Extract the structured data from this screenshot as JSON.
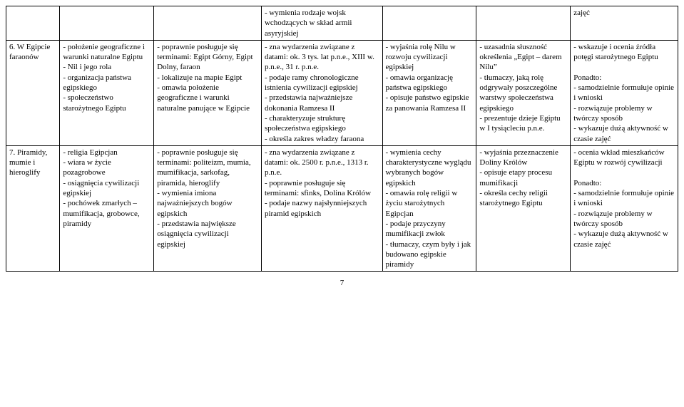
{
  "table": {
    "columns": [
      "col0",
      "col1",
      "col2",
      "col3",
      "col4",
      "col5",
      "col6"
    ],
    "rows": [
      {
        "c0": "",
        "c1": "",
        "c2": "",
        "c3": "- wymienia rodzaje wojsk wchodzących w skład armii asyryjskiej",
        "c4": "",
        "c5": "",
        "c6": "zajęć"
      },
      {
        "c0": "6. W Egipcie faraonów",
        "c1": "- położenie geograficzne i warunki naturalne Egiptu\n- Nil i jego rola\n- organizacja państwa egipskiego\n- społeczeństwo starożytnego Egiptu",
        "c2": "- poprawnie posługuje się terminami: Egipt Górny, Egipt Dolny, faraon\n- lokalizuje na mapie Egipt\n- omawia położenie geograficzne i warunki naturalne panujące w Egipcie",
        "c3": "- zna wydarzenia związane z datami: ok. 3 tys. lat p.n.e., XIII w. p.n.e., 31 r. p.n.e.\n- podaje ramy chronologiczne istnienia cywilizacji egipskiej\n- przedstawia najważniejsze dokonania Ramzesa II\n- charakteryzuje strukturę społeczeństwa egipskiego\n- określa zakres władzy faraona",
        "c4": "- wyjaśnia rolę Nilu w rozwoju cywilizacji egipskiej\n- omawia organizację państwa egipskiego\n- opisuje państwo egipskie za panowania Ramzesa II",
        "c5": "- uzasadnia słuszność określenia „Egipt – darem Nilu”\n- tłumaczy, jaką rolę odgrywały poszczególne warstwy społeczeństwa egipskiego\n- prezentuje dzieje Egiptu w I tysiącleciu p.n.e.",
        "c6": "- wskazuje i ocenia źródła potęgi starożytnego Egiptu\n\nPonadto:\n- samodzielnie formułuje opinie i wnioski\n- rozwiązuje problemy w twórczy sposób\n- wykazuje dużą aktywność w czasie zajęć"
      },
      {
        "c0": "7. Piramidy, mumie i hieroglify",
        "c1": "- religia Egipcjan\n- wiara w życie pozagrobowe\n- osiągnięcia cywilizacji egipskiej\n- pochówek zmarłych – mumifikacja, grobowce, piramidy",
        "c2": "- poprawnie posługuje się terminami: politeizm, mumia, mumifikacja, sarkofag, piramida, hieroglify\n- wymienia imiona najważniejszych bogów egipskich\n- przedstawia największe osiągnięcia cywilizacji egipskiej",
        "c3": "- zna wydarzenia związane z datami: ok. 2500 r. p.n.e., 1313 r. p.n.e.\n- poprawnie posługuje się terminami: sfinks, Dolina Królów\n- podaje nazwy najsłynniejszych piramid egipskich",
        "c4": "- wymienia cechy charakterystyczne wyglądu wybranych bogów egipskich\n- omawia rolę religii w życiu starożytnych Egipcjan\n- podaje przyczyny mumifikacji zwłok\n- tłumaczy, czym były i jak budowano egipskie piramidy",
        "c5": "- wyjaśnia przeznaczenie Doliny Królów\n- opisuje etapy procesu mumifikacji\n- określa cechy religii starożytnego Egiptu",
        "c6": "- ocenia wkład mieszkańców Egiptu w rozwój cywilizacji\n\nPonadto:\n- samodzielnie formułuje opinie i wnioski\n- rozwiązuje problemy w twórczy sposób\n- wykazuje dużą aktywność w czasie zajęć"
      }
    ]
  },
  "page_number": "7"
}
